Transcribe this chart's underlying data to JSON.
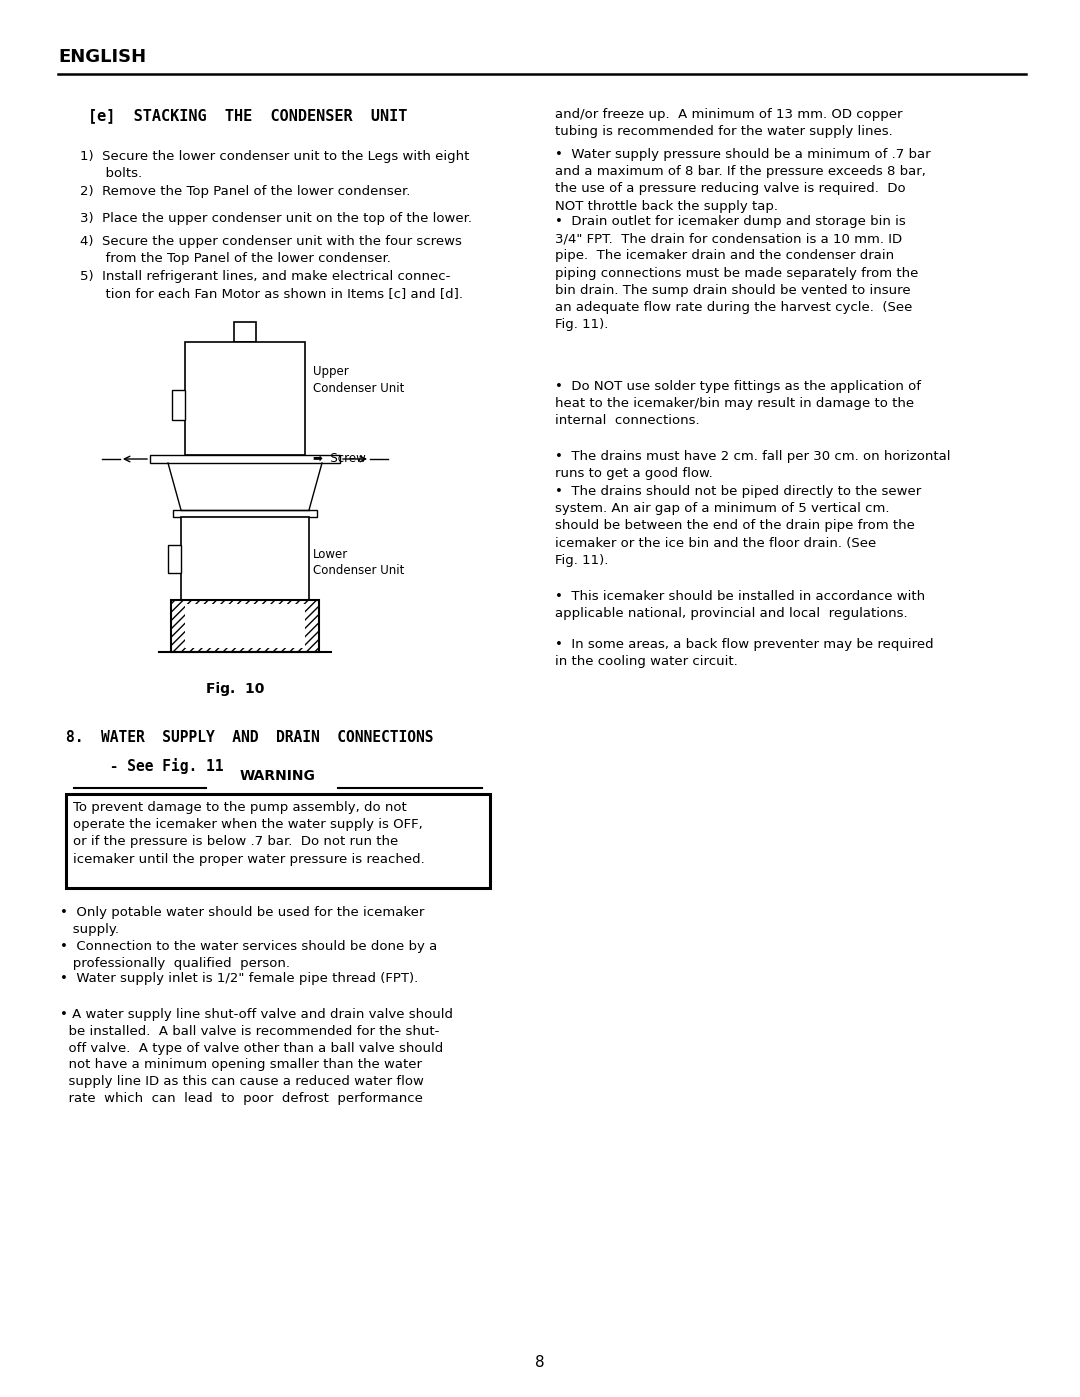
{
  "bg": "#ffffff",
  "header": "ENGLISH",
  "sec_e_title": "[e]  STACKING  THE  CONDENSER  UNIT",
  "items": [
    "1)  Secure the lower condenser unit to the Legs with eight\n      bolts.",
    "2)  Remove the Top Panel of the lower condenser.",
    "3)  Place the upper condenser unit on the top of the lower.",
    "4)  Secure the upper condenser unit with the four screws\n      from the Top Panel of the lower condenser.",
    "5)  Install refrigerant lines, and make electrical connec-\n      tion for each Fan Motor as shown in Items [c] and [d]."
  ],
  "right": [
    "and/or freeze up.  A minimum of 13 mm. OD copper\ntubing is recommended for the water supply lines.",
    "•  Water supply pressure should be a minimum of .7 bar\nand a maximum of 8 bar. If the pressure exceeds 8 bar,\nthe use of a pressure reducing valve is required.  Do\nNOT throttle back the supply tap.",
    "•  Drain outlet for icemaker dump and storage bin is\n3/4\" FPT.  The drain for condensation is a 10 mm. ID\npipe.  The icemaker drain and the condenser drain\npiping connections must be made separately from the\nbin drain. The sump drain should be vented to insure\nan adequate flow rate during the harvest cycle.  (See\nFig. 11).",
    "•  Do NOT use solder type fittings as the application of\nheat to the icemaker/bin may result in damage to the\ninternal  connections.",
    "•  The drains must have 2 cm. fall per 30 cm. on horizontal\nruns to get a good flow.",
    "•  The drains should not be piped directly to the sewer\nsystem. An air gap of a minimum of 5 vertical cm.\nshould be between the end of the drain pipe from the\nicemaker or the ice bin and the floor drain. (See\nFig. 11).",
    "•  This icemaker should be installed in accordance with\napplicable national, provincial and local  regulations.",
    "•  In some areas, a back flow preventer may be required\nin the cooling water circuit."
  ],
  "sec8": "8.  WATER  SUPPLY  AND  DRAIN  CONNECTIONS",
  "sec8b": "     - See Fig. 11",
  "warn_title": "WARNING",
  "warn_body": "To prevent damage to the pump assembly, do not\noperate the icemaker when the water supply is OFF,\nor if the pressure is below .7 bar.  Do not run the\nicemaker until the proper water pressure is reached.",
  "bullets": [
    "•  Only potable water should be used for the icemaker\n   supply.",
    "•  Connection to the water services should be done by a\n   professionally  qualified  person.",
    "•  Water supply inlet is 1/2\" female pipe thread (FPT).",
    "• A water supply line shut-off valve and drain valve should\n  be installed.  A ball valve is recommended for the shut-\n  off valve.  A type of valve other than a ball valve should\n  not have a minimum opening smaller than the water\n  supply line ID as this can cause a reduced water flow\n  rate  which  can  lead  to  poor  defrost  performance"
  ],
  "page": "8"
}
